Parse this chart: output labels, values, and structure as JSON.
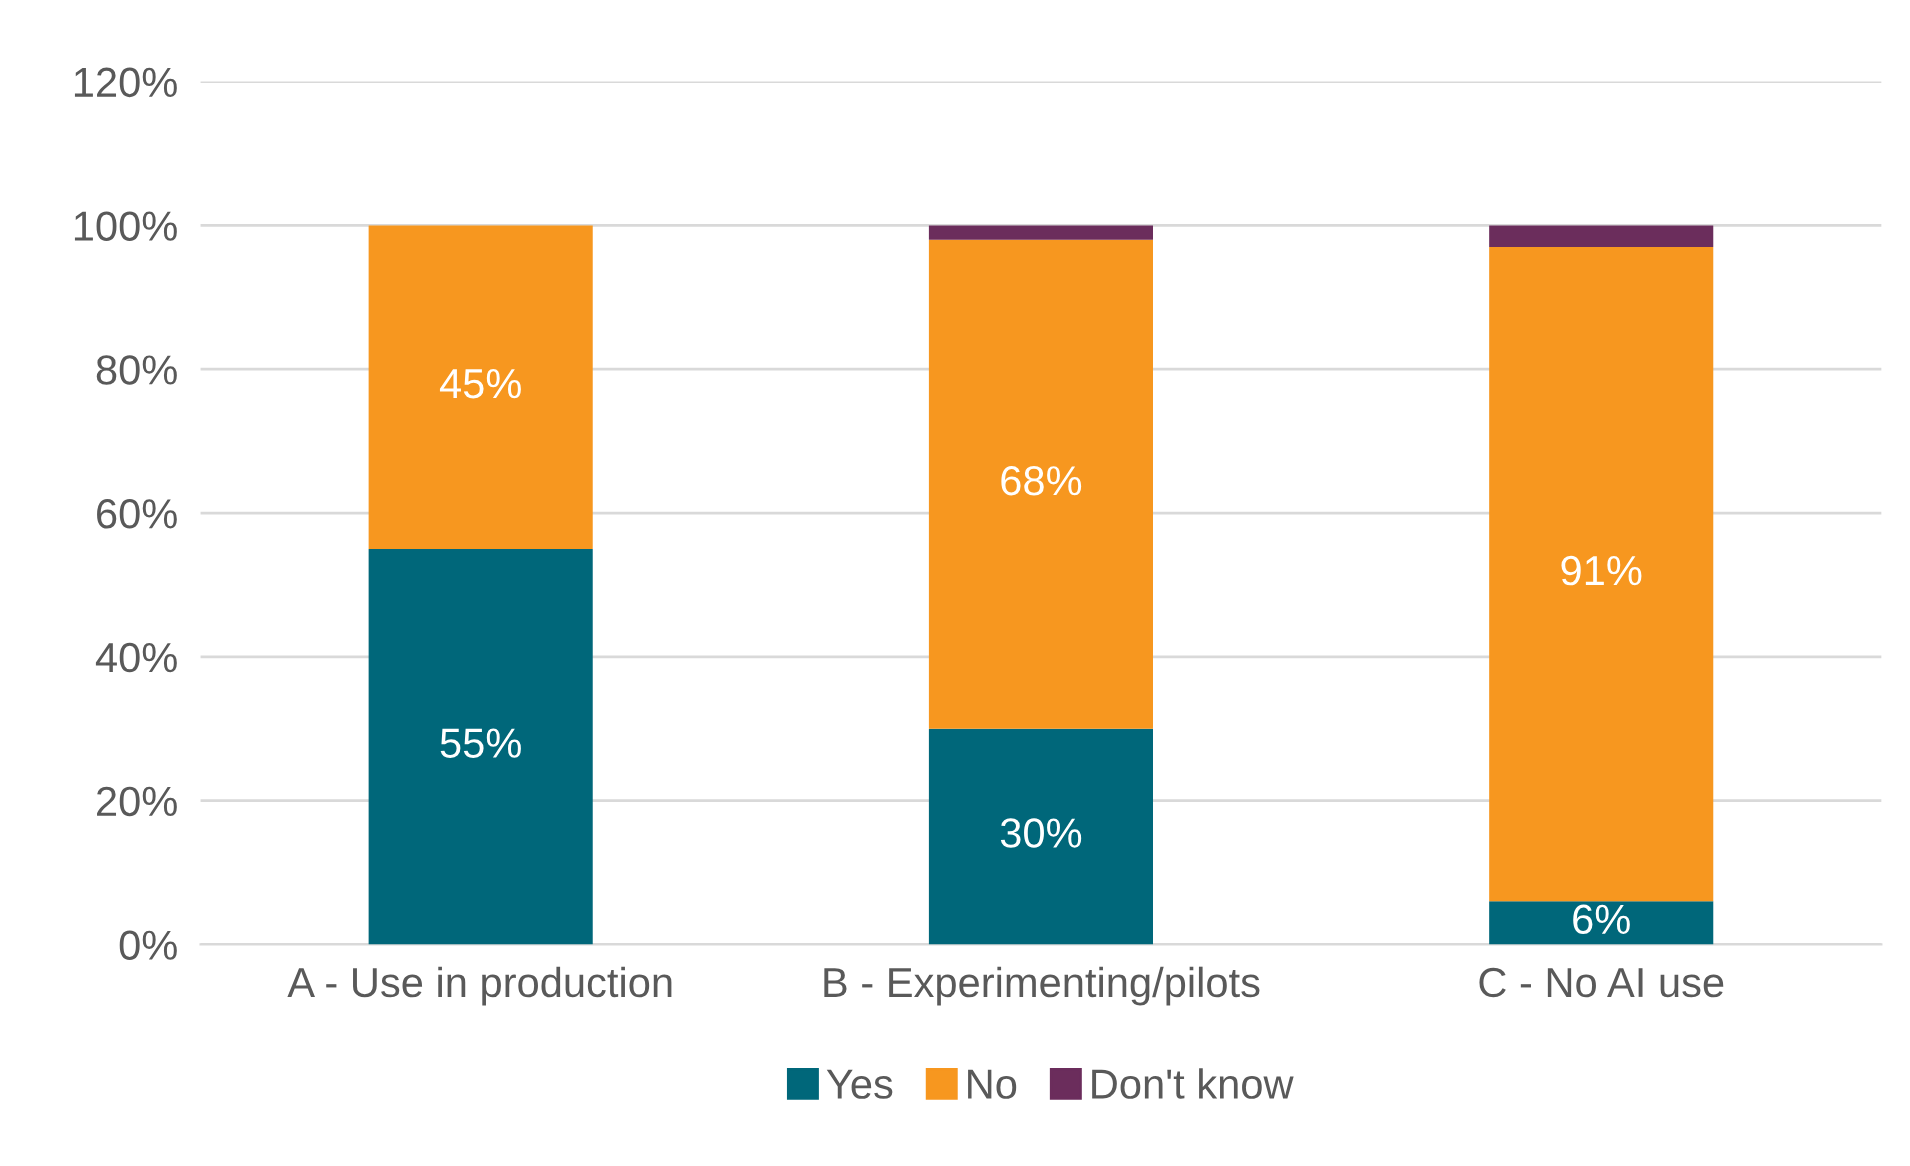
{
  "chart_data": {
    "type": "bar",
    "stacked": true,
    "categories": [
      "A - Use in production",
      "B - Experimenting/pilots",
      "C - No AI use"
    ],
    "series": [
      {
        "name": "Yes",
        "color": "#00677a",
        "values": [
          55,
          30,
          6
        ],
        "value_labels": [
          "55%",
          "30%",
          "6%"
        ]
      },
      {
        "name": "No",
        "color": "#f7971f",
        "values": [
          45,
          68,
          91
        ],
        "value_labels": [
          "45%",
          "68%",
          "91%"
        ]
      },
      {
        "name": "Don't know",
        "color": "#6b2d5c",
        "values": [
          0,
          2,
          3
        ]
      }
    ],
    "ylim": [
      0,
      120
    ],
    "yticks": [
      {
        "value": 0,
        "label": "0%"
      },
      {
        "value": 20,
        "label": "20%"
      },
      {
        "value": 40,
        "label": "40%"
      },
      {
        "value": 60,
        "label": "60%"
      },
      {
        "value": 80,
        "label": "80%"
      },
      {
        "value": 100,
        "label": "100%"
      },
      {
        "value": 120,
        "label": "120%"
      }
    ],
    "grid": "y",
    "legend": "bottom"
  }
}
